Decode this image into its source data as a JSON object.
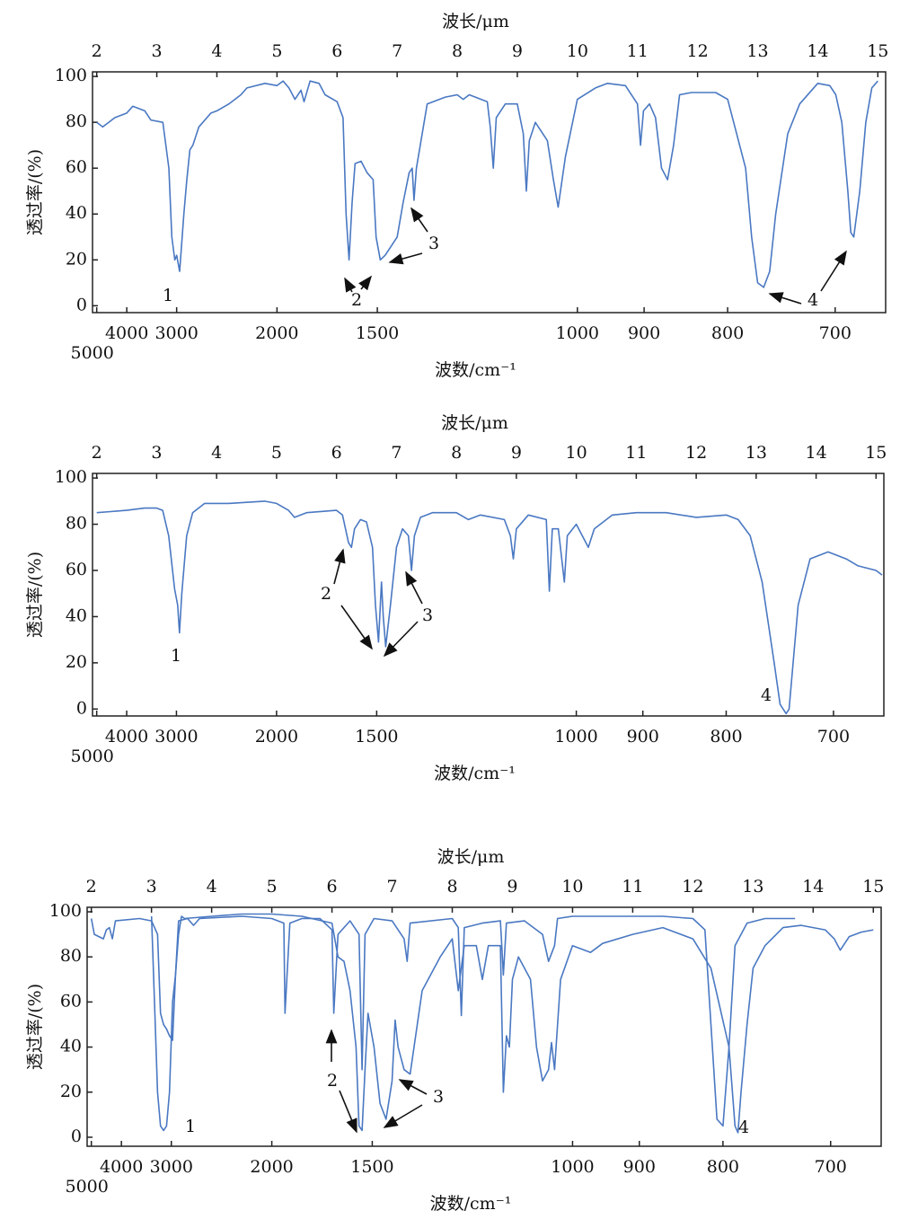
{
  "chart_data": [
    {
      "type": "line",
      "xlabel": "波长/μm",
      "x2label": "波数/cm⁻¹",
      "ylabel": "透过率/(%)",
      "xlim": [
        1.93,
        15.13
      ],
      "ylim": [
        -3,
        102
      ],
      "xticks": [
        2,
        3,
        4,
        5,
        6,
        7,
        8,
        9,
        10,
        11,
        12,
        13,
        14,
        15
      ],
      "x2ticks": [
        {
          "value": 2,
          "label": "5000"
        },
        {
          "value": 2.5,
          "label": "4000"
        },
        {
          "value": 3.33,
          "label": "3000"
        },
        {
          "value": 5,
          "label": "2000"
        },
        {
          "value": 6.67,
          "label": "1500"
        },
        {
          "value": 10,
          "label": "1000"
        },
        {
          "value": 11.11,
          "label": "900"
        },
        {
          "value": 12.5,
          "label": "800"
        },
        {
          "value": 14.29,
          "label": "700"
        }
      ],
      "yticks": [
        0,
        20,
        40,
        60,
        80,
        100
      ],
      "annotations": [
        "1",
        "2",
        "3",
        "4"
      ],
      "series": [
        {
          "color": "#4a78c2",
          "x": [
            2.0,
            2.1,
            2.3,
            2.5,
            2.6,
            2.8,
            2.9,
            3.1,
            3.2,
            3.25,
            3.3,
            3.33,
            3.38,
            3.45,
            3.5,
            3.55,
            3.6,
            3.7,
            3.9,
            4.0,
            4.2,
            4.4,
            4.5,
            4.8,
            5.0,
            5.1,
            5.2,
            5.3,
            5.4,
            5.45,
            5.55,
            5.7,
            5.8,
            6.0,
            6.1,
            6.15,
            6.2,
            6.25,
            6.3,
            6.4,
            6.5,
            6.6,
            6.65,
            6.72,
            6.8,
            7.0,
            7.1,
            7.2,
            7.25,
            7.28,
            7.32,
            7.5,
            7.8,
            8.0,
            8.1,
            8.2,
            8.5,
            8.55,
            8.6,
            8.65,
            8.8,
            9.0,
            9.1,
            9.15,
            9.2,
            9.3,
            9.5,
            9.6,
            9.68,
            9.8,
            10.0,
            10.3,
            10.5,
            10.8,
            11.0,
            11.05,
            11.1,
            11.2,
            11.3,
            11.4,
            11.5,
            11.6,
            11.7,
            11.9,
            12.3,
            12.5,
            12.6,
            12.8,
            12.9,
            13.0,
            13.1,
            13.2,
            13.3,
            13.5,
            13.7,
            14.0,
            14.2,
            14.3,
            14.4,
            14.5,
            14.55,
            14.6,
            14.7,
            14.8,
            14.9,
            15.0
          ],
          "values": [
            80,
            78,
            82,
            84,
            87,
            85,
            81,
            80,
            60,
            30,
            20,
            22,
            15,
            40,
            55,
            68,
            70,
            78,
            84,
            85,
            88,
            92,
            95,
            97,
            96,
            98,
            95,
            90,
            94,
            89,
            98,
            97,
            92,
            89,
            82,
            40,
            20,
            45,
            62,
            63,
            58,
            55,
            30,
            20,
            22,
            30,
            45,
            58,
            60,
            46,
            60,
            88,
            91,
            92,
            90,
            92,
            89,
            78,
            60,
            82,
            88,
            88,
            75,
            50,
            72,
            80,
            72,
            55,
            43,
            65,
            90,
            95,
            97,
            96,
            88,
            70,
            85,
            88,
            82,
            60,
            55,
            70,
            92,
            93,
            93,
            90,
            80,
            60,
            30,
            10,
            8,
            15,
            40,
            75,
            88,
            97,
            96,
            92,
            80,
            50,
            32,
            30,
            50,
            80,
            95,
            98
          ]
        }
      ]
    },
    {
      "type": "line",
      "xlabel": "波长/μm",
      "x2label": "波数/cm⁻¹",
      "ylabel": "透过率/(%)",
      "xlim": [
        1.93,
        15.13
      ],
      "ylim": [
        -3,
        102
      ],
      "xticks": [
        2,
        3,
        4,
        5,
        6,
        7,
        8,
        9,
        10,
        11,
        12,
        13,
        14,
        15
      ],
      "x2ticks": [
        {
          "value": 2,
          "label": "5000"
        },
        {
          "value": 2.5,
          "label": "4000"
        },
        {
          "value": 3.33,
          "label": "3000"
        },
        {
          "value": 5,
          "label": "2000"
        },
        {
          "value": 6.67,
          "label": "1500"
        },
        {
          "value": 10,
          "label": "1000"
        },
        {
          "value": 11.11,
          "label": "900"
        },
        {
          "value": 12.5,
          "label": "800"
        },
        {
          "value": 14.29,
          "label": "700"
        }
      ],
      "yticks": [
        0,
        20,
        40,
        60,
        80,
        100
      ],
      "annotations": [
        "1",
        "2",
        "3",
        "4"
      ],
      "series": [
        {
          "color": "#4a78c2",
          "x": [
            2.0,
            2.5,
            2.8,
            3.0,
            3.1,
            3.2,
            3.3,
            3.35,
            3.38,
            3.42,
            3.5,
            3.6,
            3.8,
            4.2,
            4.8,
            5.0,
            5.2,
            5.3,
            5.5,
            6.0,
            6.1,
            6.2,
            6.25,
            6.3,
            6.4,
            6.5,
            6.6,
            6.65,
            6.7,
            6.75,
            6.78,
            6.82,
            6.9,
            7.0,
            7.1,
            7.2,
            7.25,
            7.3,
            7.4,
            7.6,
            8.0,
            8.2,
            8.4,
            8.8,
            8.9,
            8.95,
            9.0,
            9.2,
            9.5,
            9.55,
            9.6,
            9.7,
            9.8,
            9.85,
            10.0,
            10.2,
            10.3,
            10.6,
            11.0,
            11.5,
            12.0,
            12.5,
            12.7,
            12.9,
            13.1,
            13.3,
            13.4,
            13.5,
            13.55,
            13.7,
            13.9,
            14.2,
            14.5,
            14.7,
            15.0,
            15.1
          ],
          "values": [
            85,
            86,
            87,
            87,
            86,
            75,
            52,
            45,
            33,
            50,
            75,
            85,
            89,
            89,
            90,
            89,
            86,
            83,
            85,
            86,
            84,
            72,
            70,
            78,
            82,
            81,
            70,
            45,
            29,
            55,
            40,
            27,
            45,
            70,
            78,
            75,
            60,
            75,
            83,
            85,
            85,
            82,
            84,
            82,
            75,
            65,
            78,
            84,
            82,
            51,
            78,
            78,
            55,
            75,
            80,
            70,
            78,
            84,
            85,
            85,
            83,
            84,
            82,
            75,
            55,
            20,
            2,
            -2,
            0,
            45,
            65,
            68,
            65,
            62,
            60,
            58
          ]
        }
      ]
    },
    {
      "type": "line",
      "xlabel": "波长/μm",
      "x2label": "波数/cm⁻¹",
      "ylabel": "透过率/(%)",
      "xlim": [
        1.93,
        15.13
      ],
      "ylim": [
        -4,
        102
      ],
      "xticks": [
        2,
        3,
        4,
        5,
        6,
        7,
        8,
        9,
        10,
        11,
        12,
        13,
        14,
        15
      ],
      "x2ticks": [
        {
          "value": 2,
          "label": "5000"
        },
        {
          "value": 2.5,
          "label": "4000"
        },
        {
          "value": 3.33,
          "label": "3000"
        },
        {
          "value": 5,
          "label": "2000"
        },
        {
          "value": 6.67,
          "label": "1500"
        },
        {
          "value": 10,
          "label": "1000"
        },
        {
          "value": 11.11,
          "label": "900"
        },
        {
          "value": 12.5,
          "label": "800"
        },
        {
          "value": 14.29,
          "label": "700"
        }
      ],
      "yticks": [
        0,
        20,
        40,
        60,
        80,
        100
      ],
      "annotations": [
        "1",
        "2",
        "3",
        "4"
      ],
      "series": [
        {
          "color": "#4a78c2",
          "x": [
            2.0,
            2.05,
            2.2,
            2.25,
            2.3,
            2.35,
            2.4,
            2.8,
            3.0,
            3.1,
            3.15,
            3.2,
            3.25,
            3.3,
            3.35,
            3.4,
            3.45,
            3.6,
            3.7,
            3.8,
            4.5,
            5.0,
            5.2,
            5.22,
            5.3,
            5.5,
            5.8,
            6.0,
            6.03,
            6.1,
            6.3,
            6.45,
            6.5,
            6.55,
            6.7,
            7.0,
            7.2,
            7.25,
            7.3,
            8.0,
            8.1,
            8.15,
            8.2,
            8.5,
            8.8,
            8.85,
            8.9,
            9.2,
            9.5,
            9.6,
            9.7,
            9.75,
            10.0,
            10.5,
            11.5,
            12.0,
            12.2,
            12.3,
            12.4,
            12.5,
            12.6,
            12.7,
            12.9,
            13.2,
            13.7
          ],
          "values": [
            97,
            90,
            88,
            92,
            93,
            88,
            96,
            97,
            96,
            90,
            55,
            50,
            48,
            45,
            43,
            72,
            96,
            97,
            94,
            97,
            98,
            97,
            95,
            55,
            95,
            97,
            97,
            92,
            55,
            90,
            96,
            90,
            30,
            90,
            97,
            96,
            88,
            78,
            95,
            97,
            93,
            54,
            93,
            95,
            96,
            72,
            95,
            96,
            90,
            78,
            85,
            97,
            98,
            98,
            98,
            97,
            92,
            50,
            8,
            5,
            40,
            85,
            95,
            97,
            97
          ]
        },
        {
          "color": "#4a78c2",
          "x": [
            3.0,
            3.05,
            3.1,
            3.15,
            3.2,
            3.25,
            3.3,
            3.35,
            3.4,
            3.45,
            3.5,
            3.55,
            4.0,
            4.5,
            5.0,
            5.5,
            6.0,
            6.1,
            6.2,
            6.3,
            6.4,
            6.45,
            6.5,
            6.55,
            6.6,
            6.7,
            6.8,
            6.9,
            7.0,
            7.05,
            7.1,
            7.2,
            7.3,
            7.5,
            7.8,
            8.0,
            8.1,
            8.2,
            8.4,
            8.5,
            8.6,
            8.8,
            8.85,
            8.9,
            8.95,
            9.0,
            9.1,
            9.3,
            9.4,
            9.5,
            9.6,
            9.65,
            9.7,
            9.8,
            10.0,
            10.3,
            10.5,
            11.0,
            11.5,
            12.0,
            12.3,
            12.6,
            12.7,
            12.75,
            12.8,
            12.9,
            13.0,
            13.2,
            13.5,
            13.8,
            14.2,
            14.35,
            14.45,
            14.6,
            14.8,
            15.0
          ],
          "values": [
            98,
            60,
            20,
            5,
            3,
            5,
            20,
            60,
            72,
            90,
            98,
            97,
            98,
            99,
            99,
            98,
            95,
            80,
            78,
            65,
            40,
            5,
            3,
            30,
            55,
            40,
            15,
            8,
            25,
            52,
            40,
            30,
            28,
            65,
            80,
            88,
            65,
            85,
            85,
            70,
            85,
            85,
            20,
            45,
            40,
            70,
            80,
            70,
            40,
            25,
            30,
            42,
            30,
            70,
            85,
            82,
            86,
            90,
            93,
            88,
            75,
            40,
            5,
            2,
            20,
            50,
            75,
            85,
            93,
            94,
            92,
            88,
            83,
            89,
            91,
            92
          ]
        }
      ]
    }
  ]
}
